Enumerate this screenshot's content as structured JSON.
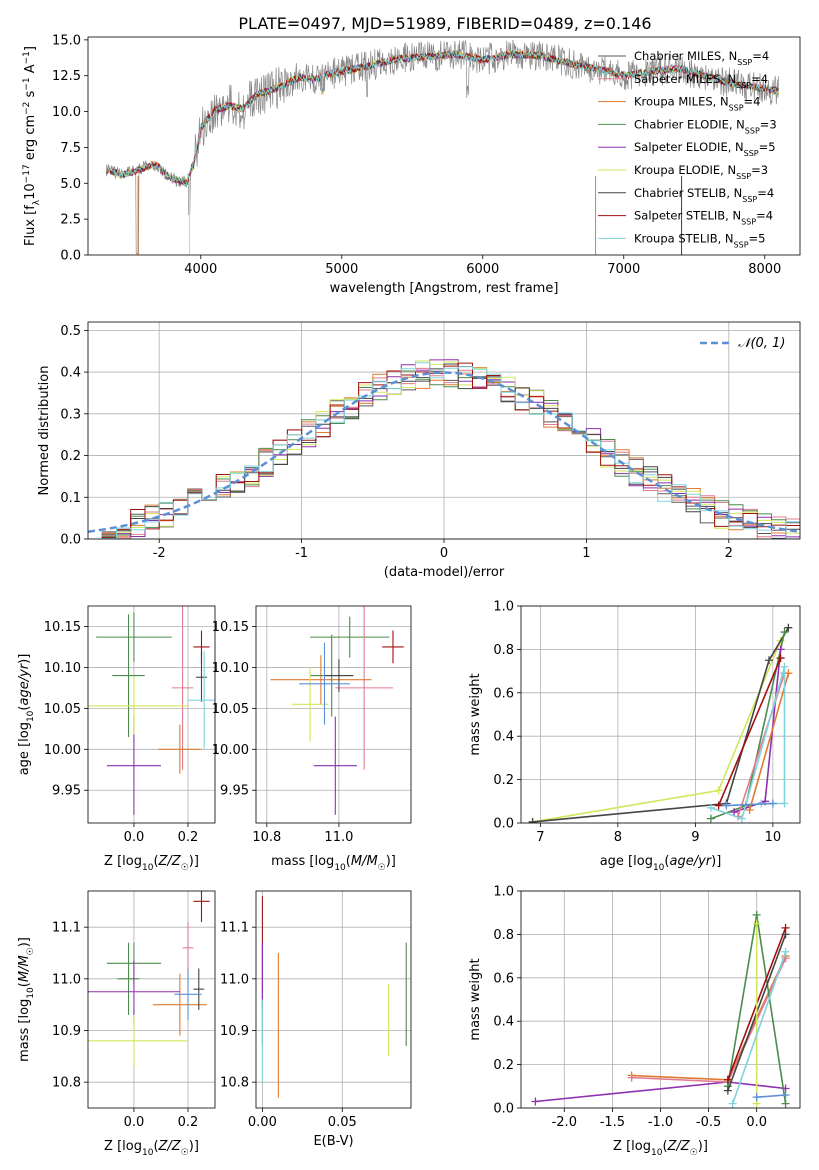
{
  "figure": {
    "title": "PLATE=0497, MJD=51989, FIBERID=0489, z=0.146"
  },
  "chart_data": [
    {
      "id": "spectrum",
      "type": "line",
      "xlabel": "wavelength [Angstrom, rest frame]",
      "ylabel": "Flux [fλ10⁻¹⁷ erg cm⁻² s⁻¹ A⁻¹]",
      "xlim": [
        3200,
        8250
      ],
      "ylim": [
        0,
        15.2
      ],
      "xticks": [
        4000,
        5000,
        6000,
        7000,
        8000
      ],
      "yticks": [
        0.0,
        2.5,
        5.0,
        7.5,
        10.0,
        12.5,
        15.0
      ],
      "grid": false,
      "legend_position": "upper-right",
      "continuum_points": {
        "x": [
          3330,
          3450,
          3550,
          3650,
          3700,
          3750,
          3800,
          3850,
          3900,
          3950,
          4000,
          4100,
          4200,
          4300,
          4400,
          4500,
          4600,
          4700,
          4800,
          4900,
          5000,
          5200,
          5400,
          5600,
          5800,
          6000,
          6200,
          6400,
          6600,
          6800,
          7000,
          7200,
          7400,
          7600,
          7800,
          8000,
          8100
        ],
        "y": [
          5.9,
          5.6,
          5.9,
          6.3,
          6.2,
          5.6,
          5.3,
          5.2,
          5.0,
          6.4,
          8.9,
          10.1,
          10.4,
          10.2,
          11.2,
          11.5,
          11.9,
          12.4,
          12.2,
          12.6,
          12.8,
          13.2,
          13.7,
          13.8,
          14.0,
          13.6,
          14.0,
          13.9,
          13.4,
          13.0,
          12.5,
          12.8,
          13.0,
          12.4,
          11.9,
          11.6,
          11.4
        ]
      },
      "series": [
        {
          "name": "Chabrier MILES, N$_{SSP}$=4",
          "label_main": "Chabrier MILES, N",
          "label_sub": "SSP",
          "label_tail": "=4",
          "color": "#5a5a5a"
        },
        {
          "name": "Salpeter MILES, N$_{SSP}$=4",
          "label_main": "Salpeter MILES, N",
          "label_sub": "SSP",
          "label_tail": "=4",
          "color": "#e07b91"
        },
        {
          "name": "Kroupa MILES, N$_{SSP}$=4",
          "label_main": "Kroupa MILES, N",
          "label_sub": "SSP",
          "label_tail": "=4",
          "color": "#e07a30"
        },
        {
          "name": "Chabrier ELODIE, N$_{SSP}$=3",
          "label_main": "Chabrier ELODIE, N",
          "label_sub": "SSP",
          "label_tail": "=3",
          "color": "#4c8c4c"
        },
        {
          "name": "Salpeter ELODIE, N$_{SSP}$=5",
          "label_main": "Salpeter ELODIE, N",
          "label_sub": "SSP",
          "label_tail": "=5",
          "color": "#8e2fb0"
        },
        {
          "name": "Kroupa ELODIE, N$_{SSP}$=3",
          "label_main": "Kroupa ELODIE, N",
          "label_sub": "SSP",
          "label_tail": "=3",
          "color": "#d2e65a"
        },
        {
          "name": "Chabrier STELIB, N$_{SSP}$=4",
          "label_main": "Chabrier STELIB, N",
          "label_sub": "SSP",
          "label_tail": "=4",
          "color": "#444444"
        },
        {
          "name": "Salpeter STELIB, N$_{SSP}$=4",
          "label_main": "Salpeter STELIB, N",
          "label_sub": "SSP",
          "label_tail": "=4",
          "color": "#a01010"
        },
        {
          "name": "Kroupa STELIB, N$_{SSP}$=5",
          "label_main": "Kroupa STELIB, N",
          "label_sub": "SSP",
          "label_tail": "=5",
          "color": "#7fd3dc"
        }
      ]
    },
    {
      "id": "residuals",
      "type": "line",
      "xlabel": "(data-model)/error",
      "ylabel": "Normed distribution",
      "xlim": [
        -2.5,
        2.5
      ],
      "ylim": [
        0,
        0.52
      ],
      "xticks": [
        -2,
        -1,
        0,
        1,
        2
      ],
      "yticks": [
        0.0,
        0.1,
        0.2,
        0.3,
        0.4,
        0.5
      ],
      "grid": true,
      "legend_position": "upper-right",
      "reference_curve": {
        "name": "𝒩(0, 1)",
        "color": "#5b8fd6",
        "style": "dashed"
      },
      "bin_width": 0.1
    },
    {
      "id": "age-vs-Z",
      "type": "scatter",
      "xlabel": "Z [log10(Z/Z⊙)]",
      "ylabel": "age  [log10(age/yr)]",
      "xlim": [
        -0.17,
        0.3
      ],
      "ylim": [
        9.91,
        10.175
      ],
      "xticks": [
        0.0,
        0.2
      ],
      "yticks": [
        9.95,
        10.0,
        10.05,
        10.1,
        10.15
      ],
      "grid": true,
      "errorbars": [
        {
          "x": 0.0,
          "xerr": 0.14,
          "y": 10.137,
          "yerr": 0.03,
          "color": "#4c8c4c"
        },
        {
          "x": 0.18,
          "xerr": 0.04,
          "y": 10.075,
          "yerr": 0.1,
          "color": "#e07b91"
        },
        {
          "x": 0.17,
          "xerr": 0.08,
          "y": 10.0,
          "yerr": 0.03,
          "color": "#e07a30"
        },
        {
          "x": -0.02,
          "xerr": 0.06,
          "y": 10.09,
          "yerr": 0.075,
          "color": "#4c8c4c"
        },
        {
          "x": 0.0,
          "xerr": 0.1,
          "y": 9.98,
          "yerr": 0.06,
          "color": "#8e2fb0"
        },
        {
          "x": 0.0,
          "xerr": 0.2,
          "y": 10.053,
          "yerr": 0.035,
          "color": "#d2e65a"
        },
        {
          "x": 0.25,
          "xerr": 0.02,
          "y": 10.088,
          "yerr": 0.03,
          "color": "#444444"
        },
        {
          "x": 0.25,
          "xerr": 0.03,
          "y": 10.125,
          "yerr": 0.02,
          "color": "#a01010"
        },
        {
          "x": 0.26,
          "xerr": 0.06,
          "y": 10.06,
          "yerr": 0.06,
          "color": "#7fd3dc"
        }
      ]
    },
    {
      "id": "age-vs-mass",
      "type": "scatter",
      "xlabel": "mass [log10(M/M⊙)]",
      "ylabel": "",
      "xlim": [
        10.77,
        11.2
      ],
      "ylim": [
        9.91,
        10.175
      ],
      "xticks": [
        10.8,
        11.0
      ],
      "yticks": [
        9.95,
        10.0,
        10.05,
        10.1,
        10.15
      ],
      "grid": true,
      "errorbars": [
        {
          "x": 11.03,
          "xerr": 0.11,
          "y": 10.137,
          "yerr": 0.025,
          "color": "#4c8c4c"
        },
        {
          "x": 11.07,
          "xerr": 0.08,
          "y": 10.075,
          "yerr": 0.1,
          "color": "#e07b91"
        },
        {
          "x": 10.95,
          "xerr": 0.14,
          "y": 10.085,
          "yerr": 0.03,
          "color": "#e07a30"
        },
        {
          "x": 10.98,
          "xerr": 0.06,
          "y": 10.09,
          "yerr": 0.05,
          "color": "#4c8c4c"
        },
        {
          "x": 10.99,
          "xerr": 0.06,
          "y": 9.98,
          "yerr": 0.06,
          "color": "#8e2fb0"
        },
        {
          "x": 10.92,
          "xerr": 0.05,
          "y": 10.055,
          "yerr": 0.045,
          "color": "#d2e65a"
        },
        {
          "x": 11.0,
          "xerr": 0.04,
          "y": 10.09,
          "yerr": 0.02,
          "color": "#444444"
        },
        {
          "x": 11.15,
          "xerr": 0.03,
          "y": 10.125,
          "yerr": 0.02,
          "color": "#a01010"
        },
        {
          "x": 10.96,
          "xerr": 0.07,
          "y": 10.08,
          "yerr": 0.05,
          "color": "#5b8fd6"
        }
      ]
    },
    {
      "id": "mass-weight-vs-age",
      "type": "line",
      "xlabel": "age  [log10(age/yr)]",
      "ylabel": "mass weight",
      "xlim": [
        6.75,
        10.35
      ],
      "ylim": [
        0,
        1.0
      ],
      "xticks": [
        7,
        8,
        9,
        10
      ],
      "yticks": [
        0.0,
        0.2,
        0.4,
        0.6,
        0.8,
        1.0
      ],
      "grid": true
    },
    {
      "id": "mass-vs-Z",
      "type": "scatter",
      "xlabel": "Z [log10(Z/Z⊙)]",
      "ylabel": "mass [log10(M/M⊙)]",
      "xlim": [
        -0.17,
        0.3
      ],
      "ylim": [
        10.75,
        11.17
      ],
      "xticks": [
        0.0,
        0.2
      ],
      "yticks": [
        10.8,
        10.9,
        11.0,
        11.1
      ],
      "grid": true,
      "errorbars": [
        {
          "x": 0.0,
          "xerr": 0.1,
          "y": 11.03,
          "yerr": 0.04,
          "color": "#4c8c4c"
        },
        {
          "x": 0.2,
          "xerr": 0.02,
          "y": 11.06,
          "yerr": 0.05,
          "color": "#e07b91"
        },
        {
          "x": 0.17,
          "xerr": 0.1,
          "y": 10.95,
          "yerr": 0.06,
          "color": "#e07a30"
        },
        {
          "x": -0.02,
          "xerr": 0.04,
          "y": 11.0,
          "yerr": 0.07,
          "color": "#4c8c4c"
        },
        {
          "x": 0.0,
          "xerr": 0.17,
          "y": 10.975,
          "yerr": 0.06,
          "color": "#8e2fb0"
        },
        {
          "x": 0.0,
          "xerr": 0.2,
          "y": 10.88,
          "yerr": 0.05,
          "color": "#d2e65a"
        },
        {
          "x": 0.24,
          "xerr": 0.02,
          "y": 10.98,
          "yerr": 0.04,
          "color": "#444444"
        },
        {
          "x": 0.25,
          "xerr": 0.03,
          "y": 11.15,
          "yerr": 0.04,
          "color": "#a01010"
        },
        {
          "x": 0.2,
          "xerr": 0.05,
          "y": 10.97,
          "yerr": 0.05,
          "color": "#5b8fd6"
        }
      ]
    },
    {
      "id": "mass-vs-EBV",
      "type": "scatter",
      "xlabel": "E(B-V)",
      "ylabel": "",
      "xlim": [
        -0.004,
        0.093
      ],
      "ylim": [
        10.75,
        11.17
      ],
      "xticks": [
        0.0,
        0.05
      ],
      "yticks": [
        10.8,
        10.9,
        11.0,
        11.1
      ],
      "grid": true,
      "errorbars": [
        {
          "x": 0.0,
          "xerr": 0.0,
          "y": 11.05,
          "yerr": 0.11,
          "color": "#a01010"
        },
        {
          "x": 0.0,
          "xerr": 0.0,
          "y": 10.97,
          "yerr": 0.1,
          "color": "#8e2fb0"
        },
        {
          "x": 0.0,
          "xerr": 0.0,
          "y": 10.88,
          "yerr": 0.08,
          "color": "#7fd3dc"
        },
        {
          "x": 0.01,
          "xerr": 0.0,
          "y": 10.91,
          "yerr": 0.14,
          "color": "#e07a30"
        },
        {
          "x": 0.079,
          "xerr": 0.0,
          "y": 10.92,
          "yerr": 0.07,
          "color": "#d2e65a"
        },
        {
          "x": 0.09,
          "xerr": 0.0,
          "y": 10.97,
          "yerr": 0.1,
          "color": "#4c8c4c"
        }
      ]
    },
    {
      "id": "mass-weight-vs-Z",
      "type": "line",
      "xlabel": "Z [log10(Z/Z⊙)]",
      "ylabel": "mass weight",
      "xlim": [
        -2.45,
        0.45
      ],
      "ylim": [
        0,
        1.0
      ],
      "xticks": [
        -2.0,
        -1.5,
        -1.0,
        -0.5,
        0.0
      ],
      "yticks": [
        0.0,
        0.2,
        0.4,
        0.6,
        0.8,
        1.0
      ],
      "grid": true
    }
  ]
}
